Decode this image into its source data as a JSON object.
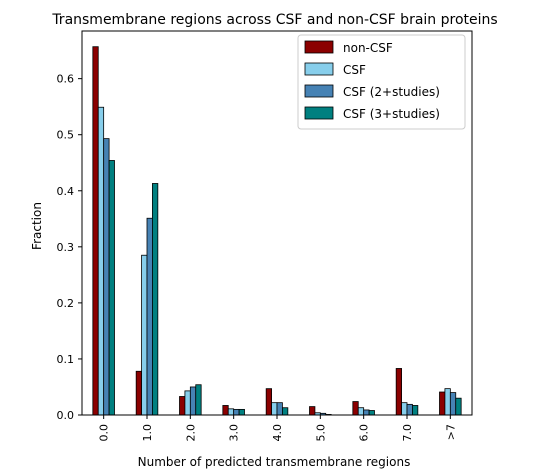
{
  "chart_data": {
    "type": "bar",
    "title": "Transmembrane regions across CSF and non-CSF brain proteins",
    "xlabel": "Number of predicted transmembrane regions",
    "ylabel": "Fraction",
    "categories": [
      "0.0",
      "1.0",
      "2.0",
      "3.0",
      "4.0",
      "5.0",
      "6.0",
      "7.0",
      ">7"
    ],
    "ylim": [
      0,
      0.685
    ],
    "yticks": [
      "0.0",
      "0.1",
      "0.2",
      "0.3",
      "0.4",
      "0.5",
      "0.6"
    ],
    "grid": false,
    "legend_position": "top-right",
    "series": [
      {
        "name": "non-CSF",
        "color": "#8b0000",
        "values": [
          0.657,
          0.078,
          0.033,
          0.017,
          0.047,
          0.015,
          0.024,
          0.083,
          0.041
        ]
      },
      {
        "name": "CSF",
        "color": "#87ceeb",
        "values": [
          0.549,
          0.285,
          0.043,
          0.011,
          0.022,
          0.004,
          0.013,
          0.022,
          0.047
        ]
      },
      {
        "name": "CSF (2+studies)",
        "color": "#4682b4",
        "values": [
          0.493,
          0.351,
          0.05,
          0.01,
          0.022,
          0.003,
          0.009,
          0.019,
          0.04
        ]
      },
      {
        "name": "CSF (3+studies)",
        "color": "#008080",
        "values": [
          0.454,
          0.413,
          0.054,
          0.01,
          0.013,
          0.001,
          0.008,
          0.017,
          0.03
        ]
      }
    ]
  }
}
